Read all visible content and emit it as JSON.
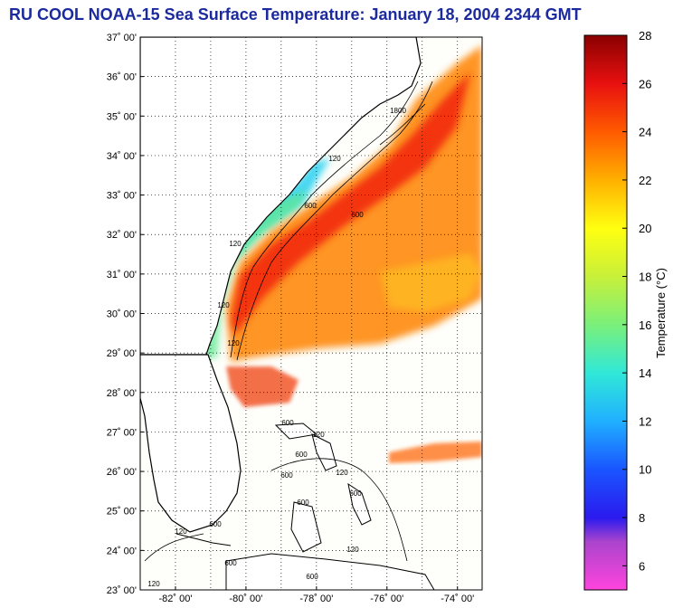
{
  "title": "RU COOL  NOAA-15  Sea Surface Temperature:  January 18, 2004 2344 GMT",
  "latitude_labels": [
    "37˚ 00'",
    "36˚ 00'",
    "35˚ 00'",
    "34˚ 00'",
    "33˚ 00'",
    "32˚ 00'",
    "31˚ 00'",
    "30˚ 00'",
    "29˚ 00'",
    "28˚ 00'",
    "27˚ 00'",
    "26˚ 00'",
    "25˚ 00'",
    "24˚ 00'",
    "23˚ 00'"
  ],
  "longitude_labels": [
    "-82˚ 00'",
    "-80˚ 00'",
    "-78˚ 00'",
    "-76˚ 00'",
    "-74˚ 00'"
  ],
  "map_extent": {
    "lat_min": 23,
    "lat_max": 37,
    "lon_min": -83,
    "lon_max": -73.3
  },
  "contour_labels": [
    "120",
    "600",
    "1800",
    "120",
    "600",
    "120",
    "120",
    "600",
    "600",
    "120",
    "600",
    "120",
    "600",
    "600",
    "120",
    "600",
    "120",
    "600",
    "600",
    "120"
  ],
  "colorbar": {
    "label": "Temperature (°C)",
    "tick_labels": [
      "28",
      "26",
      "24",
      "22",
      "20",
      "18",
      "16",
      "14",
      "12",
      "10",
      "8",
      "6"
    ],
    "min": 5,
    "max": 28,
    "stops": [
      {
        "value": 5,
        "color": "#ff44dd"
      },
      {
        "value": 7,
        "color": "#aa44cc"
      },
      {
        "value": 8,
        "color": "#2a1aee"
      },
      {
        "value": 10,
        "color": "#1a55ff"
      },
      {
        "value": 12,
        "color": "#20b0ff"
      },
      {
        "value": 14,
        "color": "#30e8d8"
      },
      {
        "value": 16,
        "color": "#7af07a"
      },
      {
        "value": 18,
        "color": "#c8f03a"
      },
      {
        "value": 20,
        "color": "#ffff10"
      },
      {
        "value": 22,
        "color": "#ffb000"
      },
      {
        "value": 24,
        "color": "#ff5a00"
      },
      {
        "value": 26,
        "color": "#e81010"
      },
      {
        "value": 28,
        "color": "#8a0000"
      }
    ]
  },
  "colors": {
    "title": "#1b2a9e",
    "land": "#ffffff",
    "coast": "#000000"
  }
}
